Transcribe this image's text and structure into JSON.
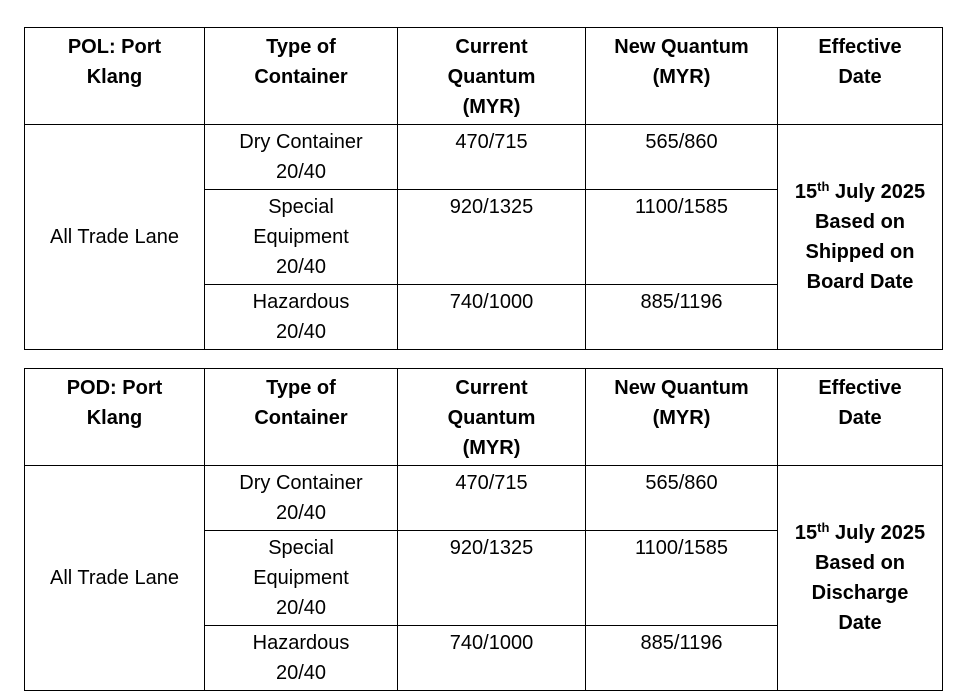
{
  "tables": [
    {
      "header": {
        "port": "POL: Port Klang",
        "type": "Type of Container",
        "current": "Current Quantum (MYR)",
        "new": "New Quantum (MYR)",
        "effective": "Effective Date"
      },
      "lane": "All Trade Lane",
      "rows": [
        {
          "type": "Dry Container 20/40",
          "current": "470/715",
          "new": "565/860"
        },
        {
          "type": "Special Equipment 20/40",
          "current": "920/1325",
          "new": "1100/1585"
        },
        {
          "type": "Hazardous 20/40",
          "current": "740/1000",
          "new": "885/1196"
        }
      ],
      "effective": {
        "day": "15",
        "suffix": "th",
        "rest": " July 2025",
        "basis": "Based on Shipped on Board Date"
      }
    },
    {
      "header": {
        "port": "POD: Port Klang",
        "type": "Type of Container",
        "current": "Current Quantum (MYR)",
        "new": "New Quantum (MYR)",
        "effective": "Effective Date"
      },
      "lane": "All Trade Lane",
      "rows": [
        {
          "type": "Dry Container 20/40",
          "current": "470/715",
          "new": "565/860"
        },
        {
          "type": "Special Equipment 20/40",
          "current": "920/1325",
          "new": "1100/1585"
        },
        {
          "type": "Hazardous 20/40",
          "current": "740/1000",
          "new": "885/1196"
        }
      ],
      "effective": {
        "day": "15",
        "suffix": "th",
        "rest": " July 2025",
        "basis": "Based on Discharge Date"
      }
    }
  ]
}
